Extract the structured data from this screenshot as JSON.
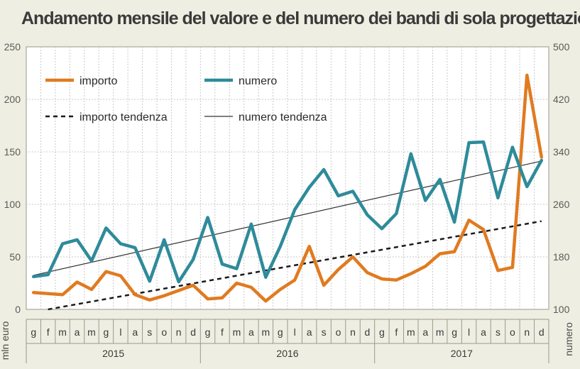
{
  "chart_data": {
    "type": "line",
    "title": "Andamento mensile del valore e del numero dei bandi di sola progettazione",
    "ylabel_left": "mln euro",
    "ylabel_right": "numero",
    "ylim_left": [
      0,
      250
    ],
    "ylim_right": [
      100,
      500
    ],
    "yticks_left": [
      "0",
      "50",
      "100",
      "150",
      "200",
      "250"
    ],
    "yticks_right": [
      "100",
      "180",
      "260",
      "340",
      "420",
      "500"
    ],
    "months": [
      "g",
      "f",
      "m",
      "a",
      "m",
      "g",
      "l",
      "a",
      "s",
      "o",
      "n",
      "d",
      "g",
      "f",
      "m",
      "a",
      "m",
      "g",
      "l",
      "a",
      "s",
      "o",
      "n",
      "d",
      "g",
      "f",
      "m",
      "a",
      "m",
      "g",
      "l",
      "a",
      "s",
      "o",
      "n",
      "d"
    ],
    "years": [
      "2015",
      "2016",
      "2017"
    ],
    "grid": true,
    "legend_position": "top-left",
    "series": [
      {
        "name": "importo",
        "axis": "left",
        "color": "#e07b20",
        "values": [
          16,
          15,
          14,
          26,
          19,
          36,
          32,
          14,
          9,
          13,
          18,
          23,
          10,
          11,
          25,
          21,
          8,
          19,
          28,
          60,
          23,
          38,
          50,
          35,
          29,
          28,
          34,
          41,
          53,
          55,
          85,
          76,
          37,
          40,
          223,
          145
        ]
      },
      {
        "name": "numero",
        "axis": "right",
        "color": "#2e8b9a",
        "values": [
          150,
          153,
          200,
          206,
          174,
          224,
          200,
          194,
          143,
          206,
          142,
          176,
          240,
          169,
          162,
          230,
          149,
          196,
          252,
          286,
          313,
          273,
          280,
          244,
          223,
          246,
          337,
          266,
          298,
          233,
          354,
          355,
          270,
          347,
          287,
          327
        ]
      },
      {
        "name": "importo tendenza",
        "axis": "left",
        "color": "#1a1a1a",
        "style": "dashed",
        "start": 0,
        "end": 84
      },
      {
        "name": "numero tendenza",
        "axis": "right",
        "color": "#333333",
        "style": "solid",
        "start": 152,
        "end": 326
      }
    ]
  }
}
